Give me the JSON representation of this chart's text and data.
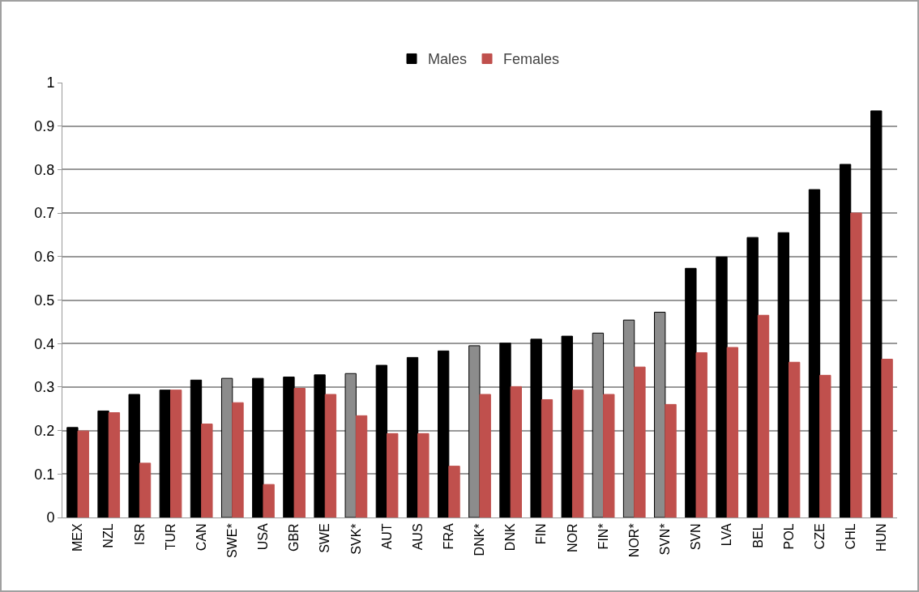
{
  "chart_data": {
    "type": "bar",
    "categories": [
      "MEX",
      "NZL",
      "ISR",
      "TUR",
      "CAN",
      "SWE*",
      "USA",
      "GBR",
      "SWE",
      "SVK*",
      "AUT",
      "AUS",
      "FRA",
      "DNK*",
      "DNK",
      "FIN",
      "NOR",
      "FIN*",
      "NOR*",
      "SVN*",
      "SVN",
      "LVA",
      "BEL",
      "POL",
      "CZE",
      "CHL",
      "HUN"
    ],
    "series": [
      {
        "name": "Males",
        "color": "#000000",
        "colors": [
          "#000000",
          "#000000",
          "#000000",
          "#000000",
          "#000000",
          "#8c8c8c",
          "#000000",
          "#000000",
          "#000000",
          "#8c8c8c",
          "#000000",
          "#000000",
          "#000000",
          "#8c8c8c",
          "#000000",
          "#000000",
          "#000000",
          "#8c8c8c",
          "#8c8c8c",
          "#8c8c8c",
          "#000000",
          "#000000",
          "#000000",
          "#000000",
          "#000000",
          "#000000",
          "#000000"
        ],
        "values": [
          0.207,
          0.245,
          0.283,
          0.293,
          0.316,
          0.32,
          0.32,
          0.323,
          0.328,
          0.331,
          0.35,
          0.368,
          0.383,
          0.395,
          0.401,
          0.41,
          0.417,
          0.424,
          0.454,
          0.472,
          0.573,
          0.599,
          0.644,
          0.655,
          0.754,
          0.812,
          0.935
        ]
      },
      {
        "name": "Females",
        "color": "#c0504d",
        "values": [
          0.199,
          0.241,
          0.125,
          0.293,
          0.215,
          0.264,
          0.076,
          0.297,
          0.283,
          0.234,
          0.193,
          0.193,
          0.118,
          0.283,
          0.301,
          0.271,
          0.293,
          0.283,
          0.346,
          0.26,
          0.379,
          0.391,
          0.465,
          0.357,
          0.327,
          0.7,
          0.364
        ]
      }
    ],
    "ylim": [
      0,
      1
    ],
    "yticks": [
      0,
      0.1,
      0.2,
      0.3,
      0.4,
      0.5,
      0.6,
      0.7,
      0.8,
      0.9,
      1
    ],
    "grid": "y",
    "legend": "top"
  }
}
